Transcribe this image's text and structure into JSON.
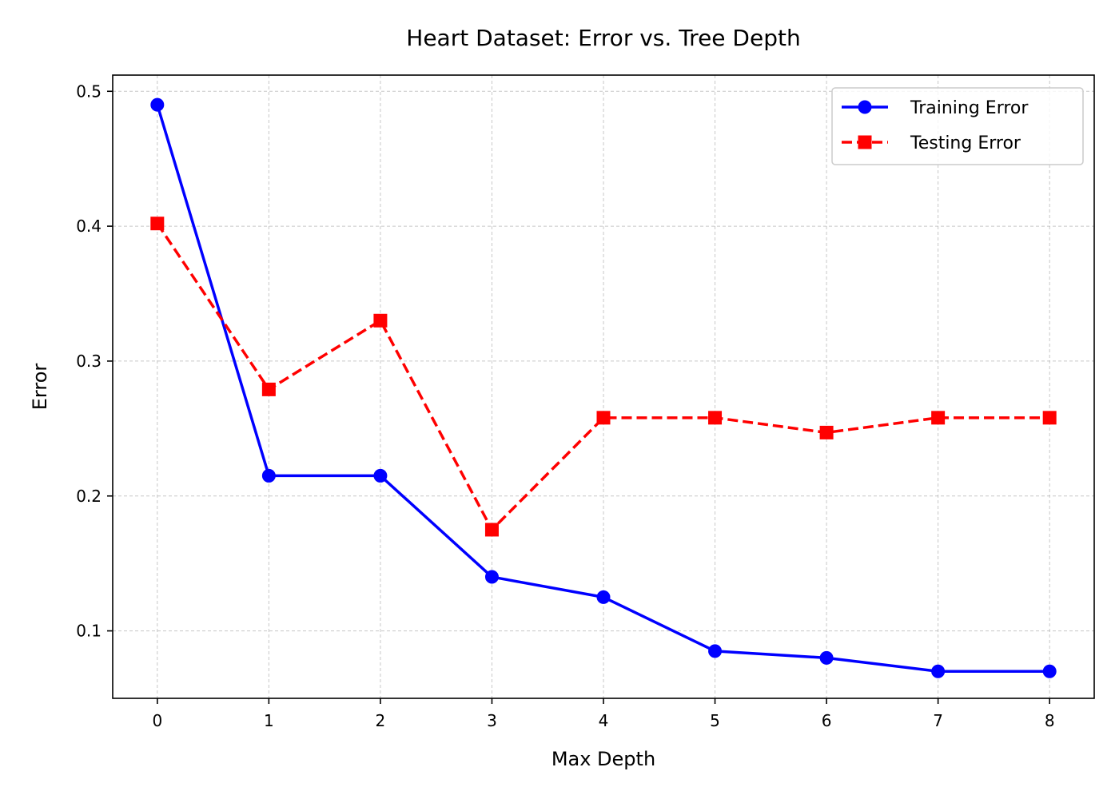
{
  "chart_data": {
    "type": "line",
    "title": "Heart Dataset: Error vs. Tree Depth",
    "xlabel": "Max Depth",
    "ylabel": "Error",
    "x": [
      0,
      1,
      2,
      3,
      4,
      5,
      6,
      7,
      8
    ],
    "xlim": [
      -0.4,
      8.4
    ],
    "ylim": [
      0.05,
      0.512
    ],
    "xticks": [
      0,
      1,
      2,
      3,
      4,
      5,
      6,
      7,
      8
    ],
    "yticks": [
      0.1,
      0.2,
      0.3,
      0.4,
      0.5
    ],
    "ytick_labels": [
      "0.1",
      "0.2",
      "0.3",
      "0.4",
      "0.5"
    ],
    "grid": true,
    "legend_position": "top-right",
    "series": [
      {
        "name": "Training Error",
        "color": "#0000ff",
        "line_style": "solid",
        "marker": "circle",
        "values": [
          0.49,
          0.215,
          0.215,
          0.14,
          0.125,
          0.085,
          0.08,
          0.07,
          0.07
        ]
      },
      {
        "name": "Testing Error",
        "color": "#ff0000",
        "line_style": "dashed",
        "marker": "square",
        "values": [
          0.402,
          0.279,
          0.33,
          0.175,
          0.258,
          0.258,
          0.247,
          0.258,
          0.258
        ]
      }
    ]
  }
}
